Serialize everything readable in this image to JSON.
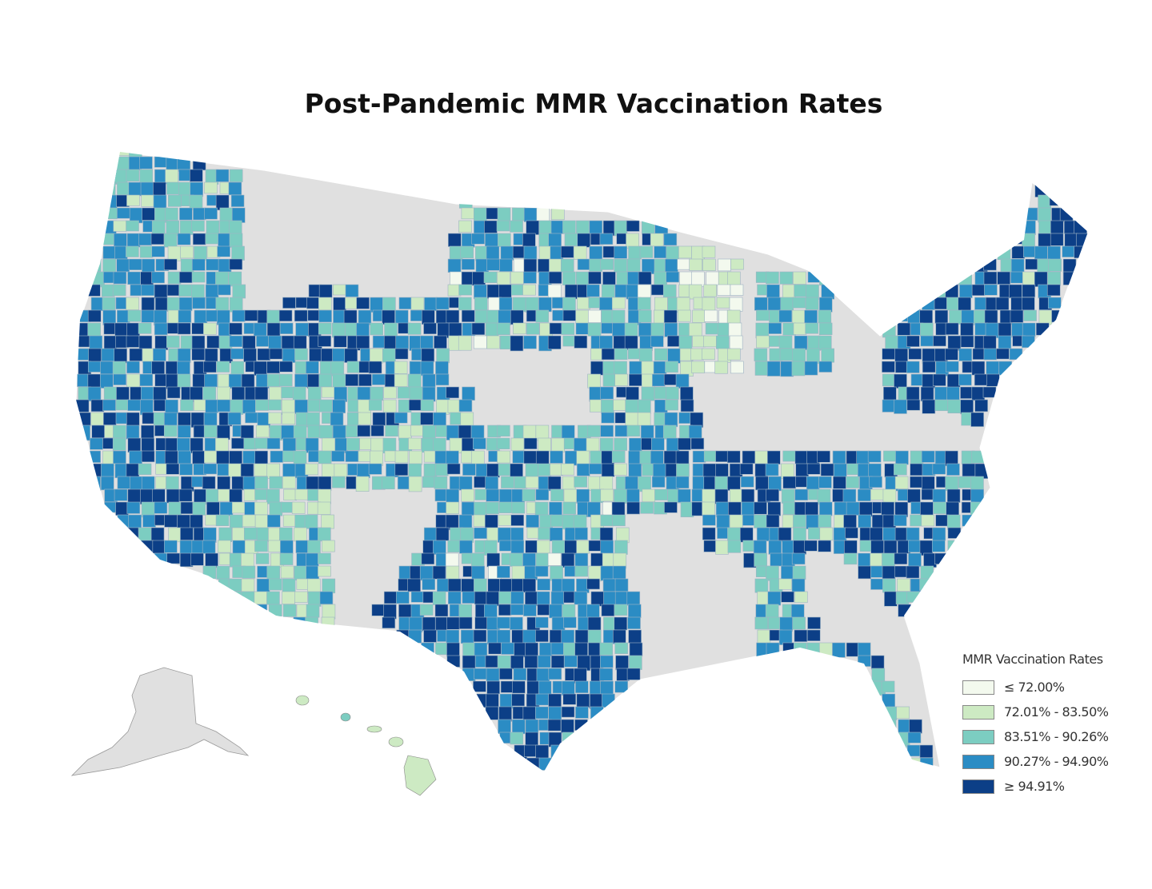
{
  "chart_data": {
    "type": "choropleth",
    "title": "Post-Pandemic MMR Vaccination Rates",
    "geography": "US counties",
    "no_data_color": "#e0e0e0",
    "legend": {
      "title": "MMR Vaccination Rates",
      "placement": "bottom-right",
      "classes": [
        {
          "label": "≤ 72.00%",
          "color": "#f3f9ee"
        },
        {
          "label": "72.01% - 83.50%",
          "color": "#cdeac3"
        },
        {
          "label": "83.51% - 90.26%",
          "color": "#7ccdc1"
        },
        {
          "label": "90.27% - 94.90%",
          "color": "#2b8cc4"
        },
        {
          "label": "≥ 94.91%",
          "color": "#0c3f87"
        }
      ]
    }
  }
}
